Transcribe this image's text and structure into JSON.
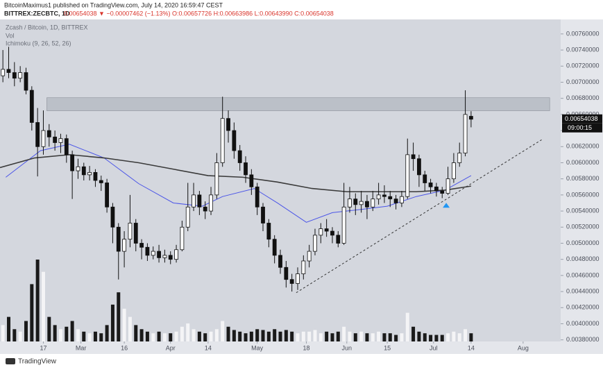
{
  "chart_data": {
    "type": "candlestick",
    "published": "BitcoinMaximus1 published on TradingView.com, July 14, 2020 16:59:47 CEST",
    "symbol": "BITTREX:ZECBTC, 1D",
    "quote": "0.00654038 ▼ −0.00007462 (−1.13%) O:0.00657726 H:0.00663986 L:0.00643990 C:0.00654038",
    "pair_label": "Zcash / Bitcoin, 1D, BITTREX",
    "volume_label": "Vol",
    "indicator_label": "Ichimoku (9, 26, 52, 26)",
    "countdown": "09:00:15",
    "brand": "TradingView",
    "up_color": "#ffffff",
    "down_color": "#111111",
    "candles": {
      "x": [
        34,
        36,
        38,
        40,
        42,
        44,
        46,
        48,
        50,
        52,
        54,
        56,
        58,
        60,
        62,
        64,
        66,
        68,
        70,
        72,
        74,
        76,
        78,
        80,
        82,
        84,
        86,
        88,
        90,
        92,
        94,
        96,
        98,
        100,
        102,
        104,
        106,
        108,
        110,
        112,
        114,
        116,
        118,
        120,
        122,
        124,
        126,
        128,
        130,
        132,
        134,
        136,
        138,
        140,
        142,
        144,
        146,
        148,
        150,
        152,
        154,
        156,
        158,
        160,
        162,
        164,
        166,
        168,
        170,
        172,
        174,
        176,
        178,
        180,
        182,
        184,
        186,
        188,
        190,
        192,
        194,
        196
      ],
      "open": [
        0.00708,
        0.00716,
        0.00712,
        0.00705,
        0.00712,
        0.0069,
        0.0065,
        0.0062,
        0.0064,
        0.00632,
        0.00625,
        0.0063,
        0.0061,
        0.0059,
        0.00595,
        0.00585,
        0.00588,
        0.00578,
        0.00575,
        0.00545,
        0.0052,
        0.0049,
        0.00505,
        0.00525,
        0.005,
        0.00495,
        0.00485,
        0.0049,
        0.00482,
        0.00485,
        0.0048,
        0.00492,
        0.0052,
        0.00545,
        0.0056,
        0.00545,
        0.0054,
        0.0056,
        0.006,
        0.00655,
        0.0064,
        0.00615,
        0.006,
        0.00585,
        0.0057,
        0.00545,
        0.00525,
        0.00505,
        0.00485,
        0.0047,
        0.00455,
        0.0045,
        0.00462,
        0.00478,
        0.0049,
        0.0051,
        0.00518,
        0.00515,
        0.0051,
        0.005,
        0.00545,
        0.00555,
        0.00548,
        0.00552,
        0.00545,
        0.00555,
        0.0056,
        0.00558,
        0.00555,
        0.0055,
        0.00558,
        0.0061,
        0.00605,
        0.00585,
        0.00575,
        0.0057,
        0.00565,
        0.00562,
        0.0058,
        0.006,
        0.00612,
        0.00657726
      ],
      "high": [
        0.0074,
        0.00744,
        0.00725,
        0.0072,
        0.00718,
        0.00695,
        0.00668,
        0.00665,
        0.00648,
        0.0064,
        0.00636,
        0.00635,
        0.00615,
        0.00605,
        0.006,
        0.00596,
        0.00592,
        0.00584,
        0.0058,
        0.0055,
        0.00525,
        0.00515,
        0.0056,
        0.0053,
        0.00505,
        0.005,
        0.00496,
        0.00498,
        0.00492,
        0.0049,
        0.00498,
        0.00528,
        0.00575,
        0.00575,
        0.00565,
        0.00552,
        0.0057,
        0.00612,
        0.00682,
        0.00665,
        0.0065,
        0.00622,
        0.00608,
        0.00592,
        0.00575,
        0.0055,
        0.0053,
        0.0051,
        0.00492,
        0.00478,
        0.00462,
        0.0047,
        0.00485,
        0.00498,
        0.00518,
        0.00525,
        0.0053,
        0.0052,
        0.00515,
        0.00575,
        0.0057,
        0.00562,
        0.00565,
        0.0056,
        0.00565,
        0.00575,
        0.00572,
        0.00565,
        0.0056,
        0.00565,
        0.0063,
        0.00625,
        0.0061,
        0.0059,
        0.0058,
        0.00575,
        0.0057,
        0.00595,
        0.00612,
        0.00625,
        0.0069,
        0.00663986
      ],
      "low": [
        0.007,
        0.00705,
        0.00695,
        0.007,
        0.00685,
        0.0064,
        0.00583,
        0.0061,
        0.0062,
        0.00615,
        0.00612,
        0.006,
        0.00555,
        0.0058,
        0.00578,
        0.00578,
        0.0057,
        0.00565,
        0.00538,
        0.005,
        0.00455,
        0.0047,
        0.00495,
        0.0049,
        0.0048,
        0.00478,
        0.0048,
        0.00476,
        0.00476,
        0.00474,
        0.00476,
        0.0049,
        0.00515,
        0.0054,
        0.00535,
        0.0053,
        0.00535,
        0.00555,
        0.00595,
        0.00625,
        0.00605,
        0.0059,
        0.00575,
        0.0056,
        0.00535,
        0.00515,
        0.00495,
        0.00475,
        0.00462,
        0.00445,
        0.0044,
        0.00442,
        0.00455,
        0.0047,
        0.00485,
        0.005,
        0.00508,
        0.005,
        0.00495,
        0.00498,
        0.00538,
        0.00535,
        0.00538,
        0.0053,
        0.0054,
        0.00548,
        0.0055,
        0.00545,
        0.00542,
        0.00545,
        0.00555,
        0.0059,
        0.0057,
        0.00565,
        0.00562,
        0.00558,
        0.00556,
        0.0056,
        0.00575,
        0.00595,
        0.00608,
        0.0064399
      ],
      "close": [
        0.00716,
        0.00712,
        0.00705,
        0.00712,
        0.0069,
        0.0065,
        0.0062,
        0.0064,
        0.00632,
        0.00625,
        0.0063,
        0.0061,
        0.0059,
        0.00595,
        0.00585,
        0.00588,
        0.00578,
        0.00575,
        0.00545,
        0.0052,
        0.0049,
        0.00505,
        0.00525,
        0.005,
        0.00495,
        0.00485,
        0.0049,
        0.00482,
        0.00485,
        0.0048,
        0.00492,
        0.0052,
        0.00545,
        0.0056,
        0.00545,
        0.0054,
        0.0056,
        0.006,
        0.00655,
        0.0064,
        0.00615,
        0.006,
        0.00585,
        0.0057,
        0.00545,
        0.00525,
        0.00505,
        0.00485,
        0.0047,
        0.00455,
        0.0045,
        0.00462,
        0.00478,
        0.0049,
        0.0051,
        0.00518,
        0.00515,
        0.0051,
        0.005,
        0.00545,
        0.00555,
        0.00548,
        0.00552,
        0.00545,
        0.00555,
        0.0056,
        0.00558,
        0.00555,
        0.0055,
        0.00558,
        0.0061,
        0.00605,
        0.00585,
        0.00575,
        0.0057,
        0.00565,
        0.00562,
        0.0058,
        0.006,
        0.00612,
        0.0066,
        0.00654038
      ],
      "volume": [
        20,
        30,
        15,
        12,
        25,
        70,
        100,
        85,
        30,
        20,
        15,
        18,
        25,
        15,
        12,
        10,
        12,
        10,
        20,
        45,
        60,
        40,
        30,
        20,
        15,
        12,
        10,
        12,
        10,
        10,
        12,
        18,
        22,
        15,
        12,
        10,
        12,
        15,
        25,
        18,
        14,
        12,
        10,
        12,
        15,
        14,
        12,
        15,
        12,
        14,
        12,
        10,
        12,
        12,
        14,
        10,
        12,
        10,
        12,
        18,
        12,
        10,
        12,
        10,
        10,
        12,
        10,
        10,
        8,
        10,
        35,
        18,
        12,
        10,
        8,
        8,
        8,
        10,
        12,
        10,
        15,
        10
      ]
    },
    "lines": [
      {
        "color": "#4b55e8",
        "x": [
          35,
          47,
          57,
          69,
          81,
          93,
          103,
          110,
          121,
          129,
          139,
          148,
          158,
          167,
          177,
          187,
          196
        ],
        "values": [
          0.00582,
          0.00615,
          0.00623,
          0.00606,
          0.00574,
          0.0055,
          0.00546,
          0.00558,
          0.00568,
          0.0055,
          0.00526,
          0.00538,
          0.00542,
          0.00546,
          0.00558,
          0.00566,
          0.00584
        ]
      },
      {
        "color": "#3a3a3a",
        "x": [
          33,
          45,
          57,
          69,
          81,
          93,
          105,
          117,
          129,
          141,
          153,
          165,
          177,
          187,
          196
        ],
        "values": [
          0.00594,
          0.00606,
          0.0061,
          0.00606,
          0.006,
          0.00592,
          0.00584,
          0.00582,
          0.00576,
          0.00568,
          0.00564,
          0.00564,
          0.00564,
          0.00566,
          0.00571
        ]
      }
    ],
    "zone": {
      "x": [
        49.2,
        223.2
      ],
      "values": [
        0.006646,
        0.006808
      ],
      "color": "#9ea3ad"
    },
    "trendline": {
      "x": [
        135.5,
        220.4
      ],
      "values": [
        0.004386,
        0.006285
      ],
      "color": "#333333"
    },
    "marker": {
      "x": 187.4,
      "value": 0.005467,
      "color": "#2196f3"
    },
    "xlim": [
      33,
      227
    ],
    "ylim": [
      0.00378,
      0.00778
    ],
    "xticks": [
      {
        "value": 48,
        "label": "17"
      },
      {
        "value": 61,
        "label": "Mar"
      },
      {
        "value": 76,
        "label": "16"
      },
      {
        "value": 92,
        "label": "Apr"
      },
      {
        "value": 105,
        "label": "14"
      },
      {
        "value": 122,
        "label": "May"
      },
      {
        "value": 139,
        "label": "18"
      },
      {
        "value": 153,
        "label": "Jun"
      },
      {
        "value": 167,
        "label": "15"
      },
      {
        "value": 183,
        "label": "Jul"
      },
      {
        "value": 196,
        "label": "14"
      },
      {
        "value": 214,
        "label": "Aug"
      }
    ],
    "yticks": [
      {
        "value": 0.0038,
        "label": "0.00380000"
      },
      {
        "value": 0.004,
        "label": "0.00400000"
      },
      {
        "value": 0.0042,
        "label": "0.00420000"
      },
      {
        "value": 0.0044,
        "label": "0.00440000"
      },
      {
        "value": 0.0046,
        "label": "0.00460000"
      },
      {
        "value": 0.0048,
        "label": "0.00480000"
      },
      {
        "value": 0.005,
        "label": "0.00500000"
      },
      {
        "value": 0.0052,
        "label": "0.00520000"
      },
      {
        "value": 0.0054,
        "label": "0.00540000"
      },
      {
        "value": 0.0056,
        "label": "0.00560000"
      },
      {
        "value": 0.0058,
        "label": "0.00580000"
      },
      {
        "value": 0.006,
        "label": "0.00600000"
      },
      {
        "value": 0.0062,
        "label": "0.00620000"
      },
      {
        "value": 0.0064,
        "label": "0.00640000"
      },
      {
        "value": 0.0066,
        "label": "0.00660000"
      },
      {
        "value": 0.0068,
        "label": "0.00680000"
      },
      {
        "value": 0.007,
        "label": "0.00700000"
      },
      {
        "value": 0.0072,
        "label": "0.00720000"
      },
      {
        "value": 0.0074,
        "label": "0.00740000"
      },
      {
        "value": 0.0076,
        "label": "0.00760000"
      }
    ],
    "grid": false
  }
}
